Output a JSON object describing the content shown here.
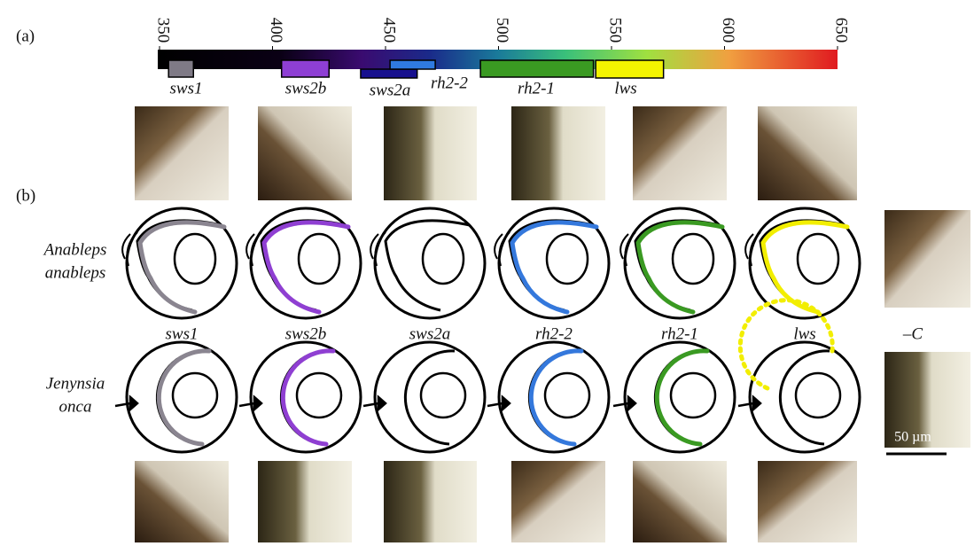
{
  "figure": {
    "panel_a": "(a)",
    "panel_b": "(b)",
    "spectrum": {
      "xlim": [
        350,
        650
      ],
      "xticks": [
        350,
        400,
        450,
        500,
        550,
        600,
        650
      ]
    },
    "opsins": [
      {
        "name": "sws1",
        "color": "#7f7a86",
        "range": [
          354,
          365
        ]
      },
      {
        "name": "sws2b",
        "color": "#8e3fd4",
        "range": [
          404,
          425
        ]
      },
      {
        "name": "sws2a",
        "color": "#17108e",
        "range": [
          439,
          464
        ]
      },
      {
        "name": "rh2-2",
        "color": "#2f7ae0",
        "range": [
          452,
          472
        ]
      },
      {
        "name": "rh2-1",
        "color": "#3a9a22",
        "range": [
          492,
          542
        ]
      },
      {
        "name": "lws",
        "color": "#f4f400",
        "range": [
          543,
          573
        ]
      }
    ],
    "columns": [
      "sws1",
      "sws2b",
      "sws2a",
      "rh2-2",
      "rh2-1",
      "lws",
      "–C"
    ],
    "species": [
      {
        "name": [
          "Anableps",
          "anableps"
        ],
        "stains": [
          "#8a8590",
          "#8f3fd2",
          null,
          "#3478dc",
          "#3a9a22",
          "#f2ee00"
        ]
      },
      {
        "name": [
          "Jenynsia",
          "onca"
        ],
        "stains": [
          "#8a8590",
          "#8f3fd2",
          null,
          "#3478dc",
          "#3a9a22",
          "#f2ee00"
        ],
        "dotted_last": true
      }
    ],
    "scale_bar": "50 µm"
  }
}
